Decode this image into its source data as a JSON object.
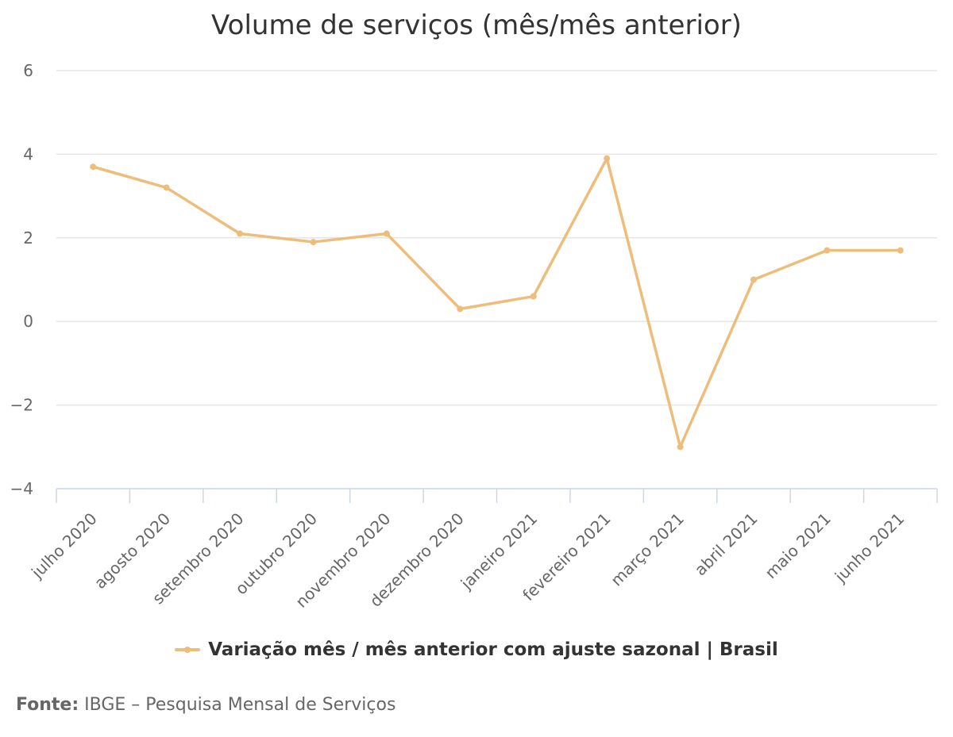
{
  "chart_data": {
    "type": "line",
    "title": "Volume de serviços (mês/mês anterior)",
    "categories": [
      "julho 2020",
      "agosto 2020",
      "setembro 2020",
      "outubro 2020",
      "novembro 2020",
      "dezembro 2020",
      "janeiro 2021",
      "fevereiro 2021",
      "março 2021",
      "abril 2021",
      "maio 2021",
      "junho 2021"
    ],
    "series": [
      {
        "name": "Variação mês / mês anterior com ajuste sazonal | Brasil",
        "values": [
          3.7,
          3.2,
          2.1,
          1.9,
          2.1,
          0.3,
          0.6,
          3.9,
          -3.0,
          1.0,
          1.7,
          1.7
        ],
        "color": "#EDBD7B"
      }
    ],
    "ylim": [
      -4,
      6
    ],
    "yticks": [
      "−4",
      "−2",
      "0",
      "2",
      "4",
      "6"
    ],
    "ytick_values": [
      -4,
      -2,
      0,
      2,
      4,
      6
    ],
    "grid": true,
    "legend_position": "bottom-center"
  },
  "source": {
    "prefix": "Fonte:",
    "text": " IBGE – Pesquisa Mensal de Serviços"
  },
  "colors": {
    "gridline": "#E6E6E6",
    "axis": "#CCD6EB",
    "series": "#EDBD7B"
  }
}
